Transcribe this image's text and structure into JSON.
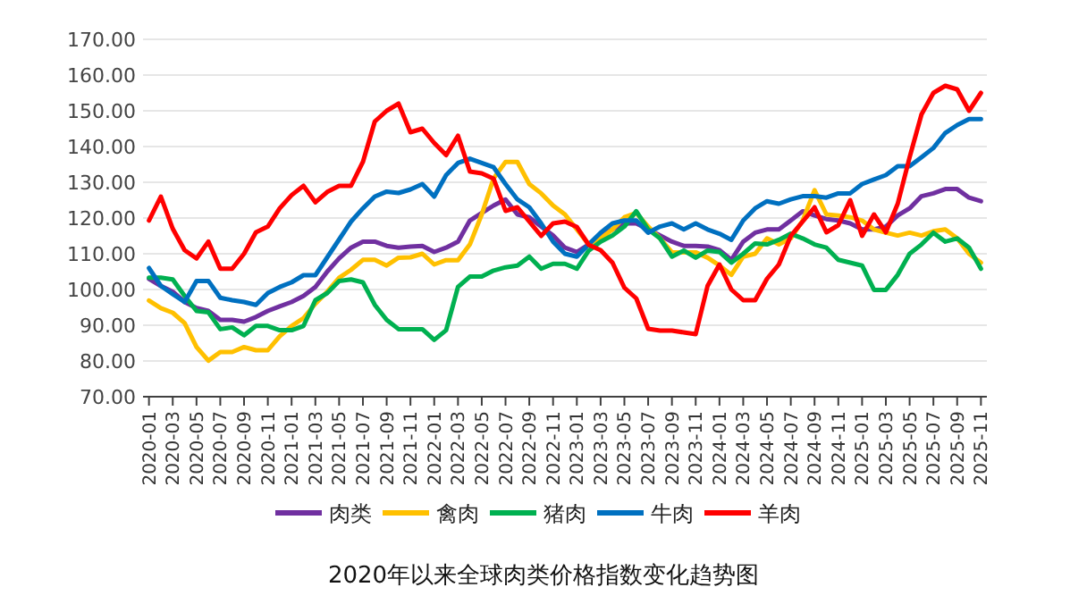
{
  "chart_data": {
    "type": "line",
    "title": "2020年以来全球肉类价格指数变化趋势图",
    "categories": [
      "2020-01",
      null,
      "2020-03",
      null,
      "2020-05",
      null,
      "2020-07",
      null,
      "2020-09",
      null,
      "2020-11",
      null,
      "2021-01",
      null,
      "2021-03",
      null,
      "2021-05",
      null,
      "2021-07",
      null,
      "2021-09",
      null,
      "2021-11",
      null,
      "2022-01",
      null,
      "2022-03",
      null,
      "2022-05",
      null,
      "2022-07",
      null,
      "2022-09",
      null,
      "2022-11",
      null,
      "2023-01",
      null,
      "2023-03",
      null,
      "2023-05",
      null,
      "2023-07",
      null,
      "2023-09",
      null,
      "2023-11",
      null,
      "2024-01",
      null,
      "2024-03",
      null,
      "2024-05",
      null,
      "2024-07",
      null,
      "2024-09",
      null,
      "2024-11",
      null,
      "2025-01",
      null,
      "2025-03",
      null,
      "2025-05",
      null,
      "2025-07",
      null,
      "2025-09",
      null,
      "2025-11"
    ],
    "series": [
      {
        "name": "肉类",
        "color": "#7030a0",
        "values": [
          103,
          101,
          99.4,
          96.5,
          94.8,
          94,
          91.5,
          91.5,
          91,
          92.3,
          94,
          95.3,
          96.5,
          98.2,
          100.7,
          105,
          108.7,
          111.7,
          113.4,
          113.4,
          112.2,
          111.7,
          112,
          112.2,
          110.5,
          111.7,
          113.4,
          119.3,
          121.4,
          123.5,
          125.2,
          121,
          120.2,
          117.6,
          115.1,
          111.7,
          110.5,
          112.6,
          115.1,
          116.8,
          118.5,
          118.5,
          116.8,
          115.1,
          113.4,
          112.2,
          112.2,
          112,
          111,
          108.3,
          113.4,
          115.9,
          116.8,
          116.8,
          119.3,
          121.9,
          120.7,
          119.7,
          119.3,
          118.5,
          116.8,
          116.8,
          117.6,
          120.7,
          122.7,
          126.1,
          126.9,
          128.1,
          128.1,
          125.7,
          124.7
        ]
      },
      {
        "name": "禽肉",
        "color": "#ffc000",
        "values": [
          96.9,
          94.8,
          93.5,
          90.6,
          83.9,
          80.1,
          82.5,
          82.5,
          83.9,
          83,
          83,
          86.9,
          89.8,
          92,
          96,
          99.4,
          103.3,
          105.5,
          108.3,
          108.3,
          106.7,
          108.9,
          109,
          110,
          107,
          108.2,
          108.2,
          112.6,
          121,
          131.1,
          135.7,
          135.7,
          129.5,
          126.9,
          123.5,
          121,
          116.8,
          112.6,
          114.3,
          116.8,
          120.2,
          121.4,
          117.6,
          114.3,
          110.4,
          110.4,
          110.4,
          108.9,
          106.7,
          104.1,
          109.2,
          110,
          114.3,
          112.6,
          114.3,
          119.3,
          127.8,
          121,
          120.7,
          120.2,
          119.3,
          116.8,
          115.9,
          115.1,
          115.9,
          115.1,
          116.3,
          116.8,
          114.3,
          110,
          107.5
        ]
      },
      {
        "name": "猪肉",
        "color": "#00b050",
        "values": [
          103.3,
          103.3,
          102.8,
          98.2,
          94,
          93.6,
          88.9,
          89.4,
          87.2,
          89.8,
          89.8,
          88.6,
          88.6,
          89.8,
          97,
          99,
          102.4,
          102.8,
          102,
          95.7,
          91.5,
          88.9,
          88.9,
          88.9,
          85.9,
          88.6,
          100.7,
          103.6,
          103.6,
          105.3,
          106.2,
          106.7,
          109.2,
          105.8,
          107.2,
          107.2,
          105.8,
          110.9,
          113.4,
          115.1,
          117.6,
          121.9,
          116.8,
          114.3,
          109.2,
          110.9,
          108.9,
          110.9,
          110.5,
          107.5,
          110,
          112.9,
          112.6,
          113.9,
          115.6,
          114.3,
          112.6,
          111.7,
          108.3,
          107.5,
          106.7,
          99.9,
          99.9,
          104.1,
          110,
          112.6,
          115.9,
          113.4,
          114.3,
          111.7,
          105.8
        ]
      },
      {
        "name": "牛肉",
        "color": "#0070c0",
        "values": [
          106,
          101,
          98.7,
          96.5,
          102.4,
          102.4,
          97.7,
          97,
          96.5,
          95.7,
          99,
          100.7,
          102,
          104,
          104,
          109,
          114,
          119,
          122.7,
          126,
          127.4,
          127,
          128,
          129.5,
          126,
          132,
          135.4,
          136.6,
          135.4,
          134.2,
          129.5,
          125.2,
          123,
          118.5,
          113.4,
          110,
          109.2,
          112.6,
          115.9,
          118.5,
          119.3,
          119.3,
          115.9,
          117.6,
          118.5,
          116.8,
          118.5,
          116.8,
          115.6,
          113.9,
          119.3,
          122.7,
          124.7,
          124,
          125.2,
          126.1,
          126.1,
          125.7,
          126.9,
          126.9,
          129.5,
          130.8,
          132,
          134.5,
          134.5,
          137,
          139.6,
          143.8,
          146,
          147.7,
          147.7
        ]
      },
      {
        "name": "羊肉",
        "color": "#ff0000",
        "values": [
          119.3,
          126,
          117,
          111,
          108.7,
          113.4,
          105.8,
          105.8,
          110,
          116,
          117.6,
          122.7,
          126.4,
          129,
          124.4,
          127.3,
          129,
          129,
          135.7,
          147,
          150,
          152,
          144,
          145,
          141,
          137.6,
          143,
          133,
          132.5,
          131,
          122,
          123,
          119,
          115,
          118.5,
          119,
          117.5,
          112.5,
          111,
          107.5,
          100.5,
          97.5,
          89,
          88.5,
          88.5,
          88,
          87.5,
          101,
          107,
          100,
          97,
          97,
          103,
          107,
          115,
          119,
          123,
          116,
          118,
          125,
          115,
          121,
          116,
          124,
          137,
          149,
          155,
          157,
          156,
          150,
          155
        ]
      }
    ],
    "ylim": [
      70,
      170
    ],
    "yticks": [
      {
        "value": 70,
        "label": "70.00"
      },
      {
        "value": 80,
        "label": "80.00"
      },
      {
        "value": 90,
        "label": "90.00"
      },
      {
        "value": 100,
        "label": "100.00"
      },
      {
        "value": 110,
        "label": "110.00"
      },
      {
        "value": 120,
        "label": "120.00"
      },
      {
        "value": 130,
        "label": "130.00"
      },
      {
        "value": 140,
        "label": "140.00"
      },
      {
        "value": 150,
        "label": "150.00"
      },
      {
        "value": 160,
        "label": "160.00"
      },
      {
        "value": 170,
        "label": "170.00"
      }
    ],
    "grid": "y",
    "legend": "bottom",
    "marker": "none",
    "line_style": "solid"
  }
}
